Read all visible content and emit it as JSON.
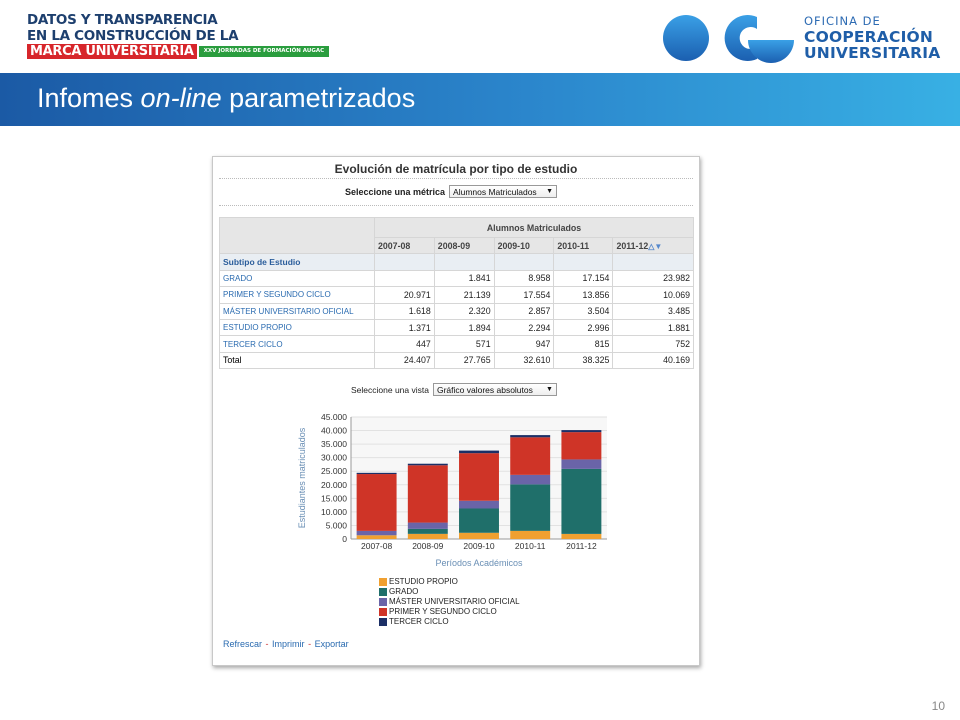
{
  "header": {
    "logo_left": {
      "line1": "DATOS Y TRANSPARENCIA",
      "line2": "EN LA CONSTRUCCIÓN DE LA",
      "line3": "MARCA UNIVERSITARIA",
      "tag": "XXV JORNADAS DE FORMACIÓN AUGAC"
    },
    "logo_right": {
      "line1": "OFICINA DE",
      "line2": "COOPERACIÓN",
      "line3": "UNIVERSITARIA"
    },
    "title_plain": "Infomes ",
    "title_italic": "on-line",
    "title_rest": " parametrizados"
  },
  "report": {
    "title": "Evolución de matrícula por tipo de estudio",
    "metric_label": "Seleccione una métrica",
    "metric_value": "Alumnos Matriculados",
    "table": {
      "group_header": "Alumnos Matriculados",
      "years": [
        "2007-08",
        "2008-09",
        "2009-10",
        "2010-11",
        "2011-12"
      ],
      "row_header": "Subtipo de Estudio",
      "rows": [
        {
          "label": "GRADO",
          "values": [
            "",
            "1.841",
            "8.958",
            "17.154",
            "23.982"
          ]
        },
        {
          "label": "PRIMER Y SEGUNDO CICLO",
          "values": [
            "20.971",
            "21.139",
            "17.554",
            "13.856",
            "10.069"
          ]
        },
        {
          "label": "MÁSTER UNIVERSITARIO OFICIAL",
          "values": [
            "1.618",
            "2.320",
            "2.857",
            "3.504",
            "3.485"
          ]
        },
        {
          "label": "ESTUDIO PROPIO",
          "values": [
            "1.371",
            "1.894",
            "2.294",
            "2.996",
            "1.881"
          ]
        },
        {
          "label": "TERCER CICLO",
          "values": [
            "447",
            "571",
            "947",
            "815",
            "752"
          ]
        }
      ],
      "total": {
        "label": "Total",
        "values": [
          "24.407",
          "27.765",
          "32.610",
          "38.325",
          "40.169"
        ]
      }
    },
    "vista_label": "Seleccione una vista",
    "vista_value": "Gráfico valores absolutos",
    "links": {
      "refresh": "Refrescar",
      "print": "Imprimir",
      "export": "Exportar"
    }
  },
  "chart_data": {
    "type": "bar",
    "stacked": true,
    "categories": [
      "2007-08",
      "2008-09",
      "2009-10",
      "2010-11",
      "2011-12"
    ],
    "series": [
      {
        "name": "ESTUDIO PROPIO",
        "color": "#f0a030",
        "values": [
          1371,
          1894,
          2294,
          2996,
          1881
        ]
      },
      {
        "name": "GRADO",
        "color": "#1f6f6a",
        "values": [
          0,
          1841,
          8958,
          17154,
          23982
        ]
      },
      {
        "name": "MÁSTER UNIVERSITARIO OFICIAL",
        "color": "#6a64a8",
        "values": [
          1618,
          2320,
          2857,
          3504,
          3485
        ]
      },
      {
        "name": "PRIMER Y SEGUNDO CICLO",
        "color": "#cf3427",
        "values": [
          20971,
          21139,
          17554,
          13856,
          10069
        ]
      },
      {
        "name": "TERCER CICLO",
        "color": "#1c2f66",
        "values": [
          447,
          571,
          947,
          815,
          752
        ]
      }
    ],
    "yticks": [
      "45.000",
      "40.000",
      "35.000",
      "30.000",
      "25.000",
      "20.000",
      "15.000",
      "10.000",
      "5.000",
      "0"
    ],
    "ylim": [
      0,
      45000
    ],
    "ylabel": "Estudiantes matriculados",
    "xlabel": "Períodos Académicos",
    "legend_position": "bottom"
  },
  "page_number": "10"
}
